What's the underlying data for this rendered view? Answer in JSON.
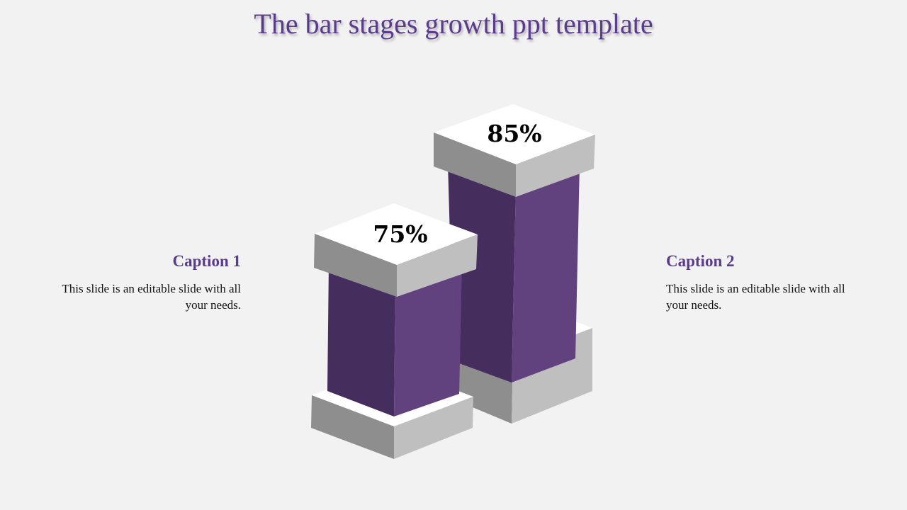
{
  "title": "The bar stages growth ppt template",
  "captions": [
    {
      "heading": "Caption 1",
      "text": "This slide is an editable slide with all your needs."
    },
    {
      "heading": "Caption 2",
      "text": "This slide is an editable slide with all your needs."
    }
  ],
  "chart_data": {
    "type": "bar",
    "categories": [
      "Caption 1",
      "Caption 2"
    ],
    "values": [
      75,
      85
    ],
    "labels": [
      "75%",
      "85%"
    ]
  },
  "colors": {
    "accent": "#5b3c8c",
    "bar_front": "#62417f",
    "bar_side": "#452d5e",
    "block_top": "#ffffff",
    "block_left": "#8e8e8e",
    "block_right": "#bfbfbf",
    "background": "#f2f2f2"
  }
}
